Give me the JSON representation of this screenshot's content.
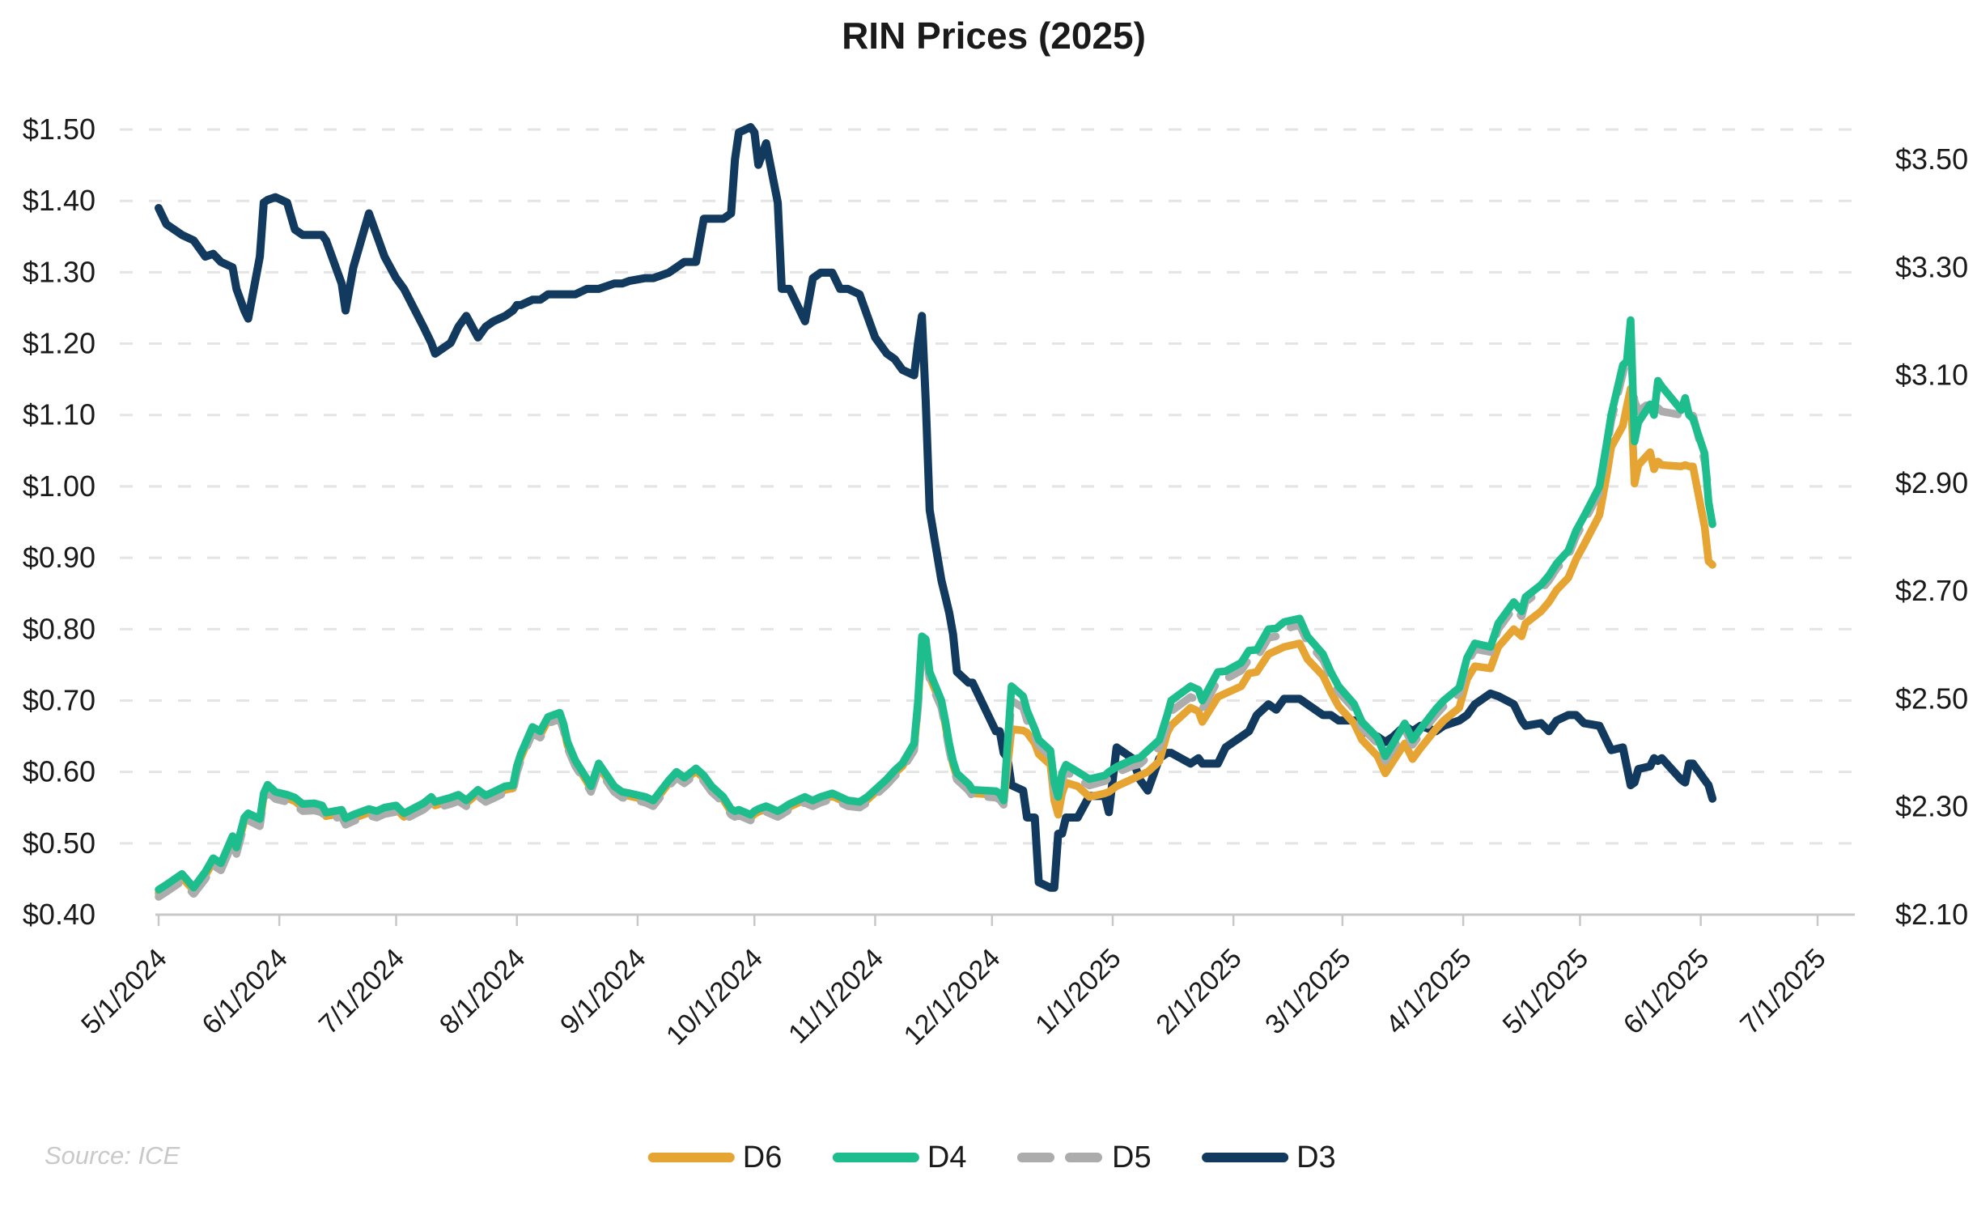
{
  "title": "RIN Prices (2025)",
  "source_note": "Source: ICE",
  "colors": {
    "d6_orange": "#E6A432",
    "d4_green": "#1EBD8D",
    "d5_gray": "#ACACAC",
    "d3_navy": "#123A5F",
    "gridline": "#E4E4E4",
    "axis_line": "#C8C8C8",
    "label_text": "#1A1A1A",
    "source_text": "#C9C9C9"
  },
  "chart_data": {
    "type": "line",
    "title": "RIN Prices (2025)",
    "grid": "horizontal-dashed, aligned to left-axis ticks",
    "legend_position": "bottom-center",
    "y_left": {
      "min": 0.4,
      "max": 1.5,
      "step": 0.1,
      "tick_labels": [
        "$0.40",
        "$0.50",
        "$0.60",
        "$0.70",
        "$0.80",
        "$0.90",
        "$1.00",
        "$1.10",
        "$1.20",
        "$1.30",
        "$1.40",
        "$1.50"
      ]
    },
    "y_right": {
      "min": 2.1,
      "max": 3.5,
      "step": 0.2,
      "tick_labels": [
        "$2.10",
        "$2.30",
        "$2.50",
        "$2.70",
        "$2.90",
        "$3.10",
        "$3.30",
        "$3.50"
      ]
    },
    "x_ticks": [
      {
        "date": "2024-05-01",
        "label": "5/1/2024"
      },
      {
        "date": "2024-06-01",
        "label": "6/1/2024"
      },
      {
        "date": "2024-07-01",
        "label": "7/1/2024"
      },
      {
        "date": "2024-08-01",
        "label": "8/1/2024"
      },
      {
        "date": "2024-09-01",
        "label": "9/1/2024"
      },
      {
        "date": "2024-10-01",
        "label": "10/1/2024"
      },
      {
        "date": "2024-11-01",
        "label": "11/1/2024"
      },
      {
        "date": "2024-12-01",
        "label": "12/1/2024"
      },
      {
        "date": "2025-01-01",
        "label": "1/1/2025"
      },
      {
        "date": "2025-02-01",
        "label": "2/1/2025"
      },
      {
        "date": "2025-03-01",
        "label": "3/1/2025"
      },
      {
        "date": "2025-04-01",
        "label": "4/1/2025"
      },
      {
        "date": "2025-05-01",
        "label": "5/1/2025"
      },
      {
        "date": "2025-06-01",
        "label": "6/1/2025"
      },
      {
        "date": "2025-07-01",
        "label": "7/1/2025"
      }
    ],
    "dates": [
      "2024-05-01",
      "2024-05-03",
      "2024-05-07",
      "2024-05-10",
      "2024-05-13",
      "2024-05-15",
      "2024-05-17",
      "2024-05-20",
      "2024-05-21",
      "2024-05-23",
      "2024-05-24",
      "2024-05-27",
      "2024-05-28",
      "2024-05-29",
      "2024-05-31",
      "2024-06-03",
      "2024-06-05",
      "2024-06-07",
      "2024-06-10",
      "2024-06-12",
      "2024-06-13",
      "2024-06-17",
      "2024-06-18",
      "2024-06-20",
      "2024-06-24",
      "2024-06-26",
      "2024-06-28",
      "2024-07-01",
      "2024-07-03",
      "2024-07-08",
      "2024-07-10",
      "2024-07-11",
      "2024-07-15",
      "2024-07-17",
      "2024-07-19",
      "2024-07-22",
      "2024-07-24",
      "2024-07-26",
      "2024-07-29",
      "2024-07-31",
      "2024-08-01",
      "2024-08-02",
      "2024-08-05",
      "2024-08-07",
      "2024-08-09",
      "2024-08-12",
      "2024-08-13",
      "2024-08-14",
      "2024-08-16",
      "2024-08-19",
      "2024-08-20",
      "2024-08-22",
      "2024-08-26",
      "2024-08-28",
      "2024-08-30",
      "2024-09-03",
      "2024-09-05",
      "2024-09-09",
      "2024-09-11",
      "2024-09-13",
      "2024-09-16",
      "2024-09-18",
      "2024-09-20",
      "2024-09-23",
      "2024-09-25",
      "2024-09-26",
      "2024-09-27",
      "2024-09-30",
      "2024-10-01",
      "2024-10-02",
      "2024-10-04",
      "2024-10-07",
      "2024-10-08",
      "2024-10-10",
      "2024-10-14",
      "2024-10-15",
      "2024-10-16",
      "2024-10-18",
      "2024-10-21",
      "2024-10-23",
      "2024-10-25",
      "2024-10-28",
      "2024-10-30",
      "2024-11-01",
      "2024-11-04",
      "2024-11-06",
      "2024-11-08",
      "2024-11-11",
      "2024-11-12",
      "2024-11-13",
      "2024-11-14",
      "2024-11-15",
      "2024-11-18",
      "2024-11-19",
      "2024-11-20",
      "2024-11-21",
      "2024-11-22",
      "2024-11-25",
      "2024-11-26",
      "2024-12-02",
      "2024-12-03",
      "2024-12-04",
      "2024-12-05",
      "2024-12-06",
      "2024-12-09",
      "2024-12-10",
      "2024-12-12",
      "2024-12-13",
      "2024-12-16",
      "2024-12-17",
      "2024-12-18",
      "2024-12-19",
      "2024-12-20",
      "2024-12-23",
      "2024-12-26",
      "2024-12-30",
      "2024-12-31",
      "2025-01-02",
      "2025-01-06",
      "2025-01-08",
      "2025-01-10",
      "2025-01-13",
      "2025-01-15",
      "2025-01-16",
      "2025-01-21",
      "2025-01-23",
      "2025-01-24",
      "2025-01-28",
      "2025-01-30",
      "2025-02-03",
      "2025-02-05",
      "2025-02-07",
      "2025-02-10",
      "2025-02-12",
      "2025-02-14",
      "2025-02-18",
      "2025-02-20",
      "2025-02-24",
      "2025-02-26",
      "2025-02-28",
      "2025-03-04",
      "2025-03-06",
      "2025-03-10",
      "2025-03-12",
      "2025-03-14",
      "2025-03-17",
      "2025-03-19",
      "2025-03-21",
      "2025-03-25",
      "2025-03-27",
      "2025-03-31",
      "2025-04-02",
      "2025-04-04",
      "2025-04-08",
      "2025-04-10",
      "2025-04-14",
      "2025-04-16",
      "2025-04-17",
      "2025-04-21",
      "2025-04-23",
      "2025-04-25",
      "2025-04-28",
      "2025-04-30",
      "2025-05-02",
      "2025-05-06",
      "2025-05-08",
      "2025-05-09",
      "2025-05-12",
      "2025-05-13",
      "2025-05-14",
      "2025-05-15",
      "2025-05-16",
      "2025-05-19",
      "2025-05-20",
      "2025-05-21",
      "2025-05-22",
      "2025-05-27",
      "2025-05-28",
      "2025-05-29",
      "2025-05-30",
      "2025-06-02",
      "2025-06-03",
      "2025-06-04"
    ],
    "series": [
      {
        "name": "D6",
        "axis": "left",
        "style": "solid",
        "color_key": "d6_orange",
        "values": [
          0.43,
          0.438,
          0.452,
          0.434,
          0.455,
          0.474,
          0.467,
          0.505,
          0.49,
          0.531,
          0.537,
          0.529,
          0.565,
          0.577,
          0.567,
          0.563,
          0.559,
          0.55,
          0.551,
          0.548,
          0.538,
          0.542,
          0.53,
          0.535,
          0.543,
          0.54,
          0.545,
          0.548,
          0.537,
          0.551,
          0.56,
          0.553,
          0.559,
          0.563,
          0.556,
          0.57,
          0.562,
          0.567,
          0.575,
          0.577,
          0.603,
          0.62,
          0.658,
          0.652,
          0.672,
          0.678,
          0.662,
          0.637,
          0.612,
          0.586,
          0.576,
          0.607,
          0.576,
          0.568,
          0.566,
          0.561,
          0.556,
          0.584,
          0.596,
          0.588,
          0.601,
          0.591,
          0.576,
          0.561,
          0.544,
          0.541,
          0.543,
          0.536,
          0.541,
          0.544,
          0.548,
          0.541,
          0.544,
          0.551,
          0.561,
          0.558,
          0.556,
          0.561,
          0.566,
          0.561,
          0.556,
          0.554,
          0.561,
          0.571,
          0.586,
          0.598,
          0.608,
          0.634,
          0.694,
          0.782,
          0.778,
          0.733,
          0.694,
          0.666,
          0.635,
          0.61,
          0.593,
          0.578,
          0.57,
          0.568,
          0.565,
          0.557,
          0.608,
          0.66,
          0.658,
          0.655,
          0.64,
          0.625,
          0.61,
          0.56,
          0.54,
          0.57,
          0.585,
          0.58,
          0.565,
          0.57,
          0.572,
          0.58,
          0.59,
          0.595,
          0.6,
          0.615,
          0.655,
          0.665,
          0.69,
          0.685,
          0.67,
          0.705,
          0.71,
          0.72,
          0.738,
          0.74,
          0.765,
          0.77,
          0.775,
          0.78,
          0.758,
          0.735,
          0.712,
          0.692,
          0.668,
          0.645,
          0.622,
          0.598,
          0.615,
          0.64,
          0.618,
          0.633,
          0.66,
          0.672,
          0.69,
          0.73,
          0.748,
          0.745,
          0.775,
          0.8,
          0.79,
          0.808,
          0.825,
          0.838,
          0.855,
          0.872,
          0.898,
          0.918,
          0.96,
          1.02,
          1.055,
          1.085,
          1.112,
          1.137,
          1.004,
          1.03,
          1.048,
          1.024,
          1.035,
          1.03,
          1.028,
          1.03,
          1.028,
          1.028,
          0.944,
          0.895,
          0.89
        ]
      },
      {
        "name": "D4",
        "axis": "left",
        "style": "solid",
        "color_key": "d4_green",
        "values": [
          0.435,
          0.442,
          0.457,
          0.438,
          0.46,
          0.479,
          0.472,
          0.51,
          0.494,
          0.536,
          0.542,
          0.534,
          0.57,
          0.582,
          0.572,
          0.568,
          0.564,
          0.555,
          0.556,
          0.553,
          0.543,
          0.547,
          0.535,
          0.54,
          0.548,
          0.545,
          0.55,
          0.553,
          0.542,
          0.556,
          0.565,
          0.558,
          0.564,
          0.568,
          0.56,
          0.575,
          0.567,
          0.572,
          0.58,
          0.581,
          0.608,
          0.625,
          0.663,
          0.657,
          0.677,
          0.683,
          0.667,
          0.642,
          0.616,
          0.59,
          0.58,
          0.612,
          0.58,
          0.572,
          0.57,
          0.565,
          0.56,
          0.588,
          0.6,
          0.592,
          0.605,
          0.595,
          0.58,
          0.565,
          0.548,
          0.545,
          0.547,
          0.54,
          0.545,
          0.548,
          0.552,
          0.545,
          0.548,
          0.555,
          0.565,
          0.562,
          0.56,
          0.565,
          0.57,
          0.565,
          0.56,
          0.558,
          0.565,
          0.575,
          0.59,
          0.602,
          0.612,
          0.64,
          0.7,
          0.79,
          0.786,
          0.74,
          0.7,
          0.672,
          0.64,
          0.615,
          0.598,
          0.583,
          0.575,
          0.573,
          0.57,
          0.56,
          0.64,
          0.72,
          0.706,
          0.686,
          0.66,
          0.645,
          0.63,
          0.585,
          0.565,
          0.598,
          0.61,
          0.6,
          0.59,
          0.595,
          0.6,
          0.607,
          0.617,
          0.62,
          0.63,
          0.645,
          0.68,
          0.7,
          0.72,
          0.715,
          0.7,
          0.74,
          0.741,
          0.753,
          0.77,
          0.771,
          0.8,
          0.801,
          0.81,
          0.815,
          0.79,
          0.765,
          0.74,
          0.72,
          0.695,
          0.67,
          0.648,
          0.622,
          0.64,
          0.668,
          0.645,
          0.66,
          0.688,
          0.7,
          0.718,
          0.76,
          0.78,
          0.775,
          0.808,
          0.838,
          0.825,
          0.845,
          0.862,
          0.875,
          0.892,
          0.91,
          0.938,
          0.958,
          1.0,
          1.065,
          1.1,
          1.17,
          1.175,
          1.233,
          1.063,
          1.09,
          1.115,
          1.1,
          1.148,
          1.14,
          1.107,
          1.124,
          1.1,
          1.095,
          1.046,
          0.978,
          0.947
        ]
      },
      {
        "name": "D5",
        "axis": "left",
        "style": "dashed",
        "color_key": "d5_gray",
        "values": [
          0.425,
          0.432,
          0.447,
          0.429,
          0.45,
          0.469,
          0.462,
          0.5,
          0.485,
          0.526,
          0.532,
          0.524,
          0.56,
          0.572,
          0.562,
          0.558,
          0.554,
          0.545,
          0.546,
          0.543,
          0.533,
          0.537,
          0.526,
          0.531,
          0.539,
          0.536,
          0.541,
          0.544,
          0.533,
          0.547,
          0.556,
          0.549,
          0.555,
          0.559,
          0.552,
          0.566,
          0.558,
          0.563,
          0.571,
          0.573,
          0.599,
          0.616,
          0.654,
          0.648,
          0.668,
          0.674,
          0.658,
          0.633,
          0.608,
          0.582,
          0.572,
          0.603,
          0.572,
          0.564,
          0.562,
          0.557,
          0.552,
          0.58,
          0.592,
          0.584,
          0.597,
          0.587,
          0.572,
          0.557,
          0.54,
          0.537,
          0.539,
          0.532,
          0.537,
          0.54,
          0.544,
          0.537,
          0.54,
          0.547,
          0.557,
          0.554,
          0.552,
          0.557,
          0.562,
          0.557,
          0.552,
          0.55,
          0.557,
          0.567,
          0.582,
          0.594,
          0.604,
          0.63,
          0.69,
          0.775,
          0.772,
          0.728,
          0.69,
          0.662,
          0.631,
          0.606,
          0.589,
          0.574,
          0.566,
          0.564,
          0.561,
          0.554,
          0.622,
          0.7,
          0.69,
          0.672,
          0.65,
          0.637,
          0.622,
          0.577,
          0.557,
          0.589,
          0.6,
          0.591,
          0.581,
          0.587,
          0.592,
          0.599,
          0.608,
          0.611,
          0.621,
          0.635,
          0.665,
          0.685,
          0.705,
          0.7,
          0.688,
          0.728,
          0.73,
          0.742,
          0.758,
          0.76,
          0.788,
          0.79,
          0.8,
          0.806,
          0.782,
          0.757,
          0.734,
          0.712,
          0.688,
          0.662,
          0.64,
          0.615,
          0.632,
          0.66,
          0.638,
          0.653,
          0.68,
          0.692,
          0.71,
          0.752,
          0.772,
          0.768,
          0.8,
          0.83,
          0.818,
          0.838,
          0.855,
          0.868,
          0.885,
          0.903,
          0.93,
          0.95,
          0.992,
          1.056,
          1.092,
          1.158,
          1.185,
          1.18,
          1.12,
          1.105,
          1.118,
          1.105,
          1.11,
          1.105,
          1.1,
          1.105,
          1.102,
          1.1,
          1.035,
          0.995,
          1.0
        ]
      },
      {
        "name": "D3",
        "axis": "right",
        "style": "solid",
        "color_key": "d3_navy",
        "values": [
          3.41,
          3.38,
          3.36,
          3.35,
          3.32,
          3.325,
          3.31,
          3.3,
          3.26,
          3.22,
          3.205,
          3.32,
          3.42,
          3.425,
          3.43,
          3.42,
          3.37,
          3.36,
          3.36,
          3.36,
          3.35,
          3.27,
          3.22,
          3.3,
          3.4,
          3.36,
          3.32,
          3.28,
          3.26,
          3.19,
          3.16,
          3.14,
          3.16,
          3.19,
          3.21,
          3.17,
          3.19,
          3.2,
          3.21,
          3.22,
          3.23,
          3.23,
          3.24,
          3.24,
          3.25,
          3.25,
          3.25,
          3.25,
          3.25,
          3.26,
          3.26,
          3.26,
          3.27,
          3.27,
          3.275,
          3.28,
          3.28,
          3.29,
          3.3,
          3.31,
          3.31,
          3.39,
          3.39,
          3.39,
          3.4,
          3.5,
          3.55,
          3.56,
          3.55,
          3.49,
          3.53,
          3.42,
          3.26,
          3.26,
          3.2,
          3.24,
          3.28,
          3.29,
          3.29,
          3.26,
          3.26,
          3.25,
          3.21,
          3.17,
          3.14,
          3.13,
          3.11,
          3.1,
          3.16,
          3.21,
          3.05,
          2.85,
          2.72,
          2.69,
          2.66,
          2.62,
          2.55,
          2.53,
          2.53,
          2.44,
          2.44,
          2.4,
          2.39,
          2.34,
          2.33,
          2.28,
          2.28,
          2.16,
          2.15,
          2.15,
          2.25,
          2.25,
          2.28,
          2.28,
          2.32,
          2.32,
          2.29,
          2.41,
          2.39,
          2.35,
          2.33,
          2.39,
          2.4,
          2.4,
          2.38,
          2.39,
          2.38,
          2.38,
          2.41,
          2.43,
          2.44,
          2.47,
          2.49,
          2.48,
          2.5,
          2.5,
          2.49,
          2.47,
          2.47,
          2.46,
          2.46,
          2.44,
          2.43,
          2.42,
          2.43,
          2.45,
          2.44,
          2.45,
          2.44,
          2.45,
          2.46,
          2.47,
          2.49,
          2.51,
          2.505,
          2.49,
          2.46,
          2.45,
          2.455,
          2.44,
          2.46,
          2.47,
          2.47,
          2.455,
          2.45,
          2.42,
          2.405,
          2.41,
          2.375,
          2.34,
          2.345,
          2.37,
          2.375,
          2.39,
          2.385,
          2.39,
          2.35,
          2.345,
          2.38,
          2.38,
          2.35,
          2.34,
          2.315
        ]
      }
    ],
    "legend": [
      "D6",
      "D4",
      "D5",
      "D3"
    ]
  }
}
